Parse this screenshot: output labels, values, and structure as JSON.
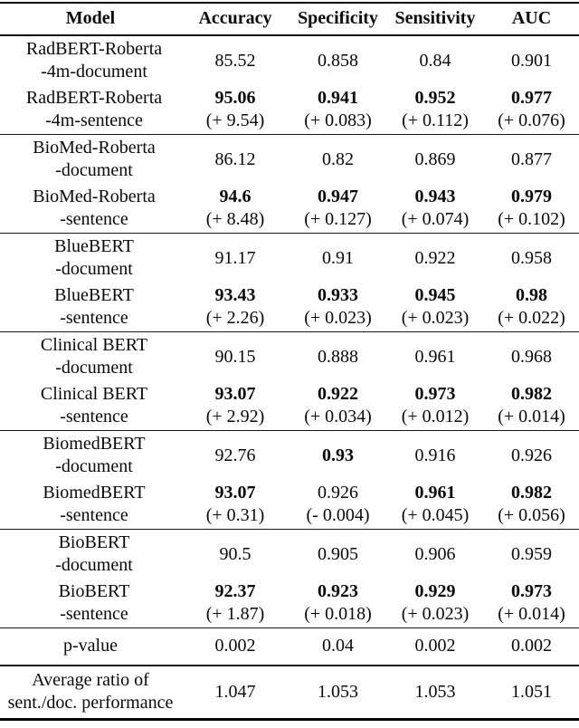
{
  "table": {
    "header": {
      "model": "Model",
      "accuracy": "Accuracy",
      "specificity": "Specificity",
      "sensitivity": "Sensitivity",
      "auc": "AUC"
    },
    "groups": [
      {
        "doc": {
          "name1": "RadBERT-Roberta",
          "name2": "-4m-document",
          "vals": [
            {
              "v": "85.52",
              "b": false
            },
            {
              "v": "0.858",
              "b": false
            },
            {
              "v": "0.84",
              "b": false
            },
            {
              "v": "0.901",
              "b": false
            }
          ]
        },
        "sent": {
          "name1": "RadBERT-Roberta",
          "name2": "-4m-sentence",
          "vals": [
            {
              "v": "95.06",
              "b": true,
              "d": "(+ 9.54)"
            },
            {
              "v": "0.941",
              "b": true,
              "d": "(+ 0.083)"
            },
            {
              "v": "0.952",
              "b": true,
              "d": "(+ 0.112)"
            },
            {
              "v": "0.977",
              "b": true,
              "d": "(+ 0.076)"
            }
          ]
        }
      },
      {
        "doc": {
          "name1": "BioMed-Roberta",
          "name2": "-document",
          "vals": [
            {
              "v": "86.12",
              "b": false
            },
            {
              "v": "0.82",
              "b": false
            },
            {
              "v": "0.869",
              "b": false
            },
            {
              "v": "0.877",
              "b": false
            }
          ]
        },
        "sent": {
          "name1": "BioMed-Roberta",
          "name2": "-sentence",
          "vals": [
            {
              "v": "94.6",
              "b": true,
              "d": "(+ 8.48)"
            },
            {
              "v": "0.947",
              "b": true,
              "d": "(+ 0.127)"
            },
            {
              "v": "0.943",
              "b": true,
              "d": "(+ 0.074)"
            },
            {
              "v": "0.979",
              "b": true,
              "d": "(+ 0.102)"
            }
          ]
        }
      },
      {
        "doc": {
          "name1": "BlueBERT",
          "name2": "-document",
          "vals": [
            {
              "v": "91.17",
              "b": false
            },
            {
              "v": "0.91",
              "b": false
            },
            {
              "v": "0.922",
              "b": false
            },
            {
              "v": "0.958",
              "b": false
            }
          ]
        },
        "sent": {
          "name1": "BlueBERT",
          "name2": "-sentence",
          "vals": [
            {
              "v": "93.43",
              "b": true,
              "d": "(+ 2.26)"
            },
            {
              "v": "0.933",
              "b": true,
              "d": "(+ 0.023)"
            },
            {
              "v": "0.945",
              "b": true,
              "d": "(+ 0.023)"
            },
            {
              "v": "0.98",
              "b": true,
              "d": "(+ 0.022)"
            }
          ]
        }
      },
      {
        "doc": {
          "name1": "Clinical BERT",
          "name2": "-document",
          "vals": [
            {
              "v": "90.15",
              "b": false
            },
            {
              "v": "0.888",
              "b": false
            },
            {
              "v": "0.961",
              "b": false
            },
            {
              "v": "0.968",
              "b": false
            }
          ]
        },
        "sent": {
          "name1": "Clinical BERT",
          "name2": "-sentence",
          "vals": [
            {
              "v": "93.07",
              "b": true,
              "d": "(+ 2.92)"
            },
            {
              "v": "0.922",
              "b": true,
              "d": "(+ 0.034)"
            },
            {
              "v": "0.973",
              "b": true,
              "d": "(+ 0.012)"
            },
            {
              "v": "0.982",
              "b": true,
              "d": "(+ 0.014)"
            }
          ]
        }
      },
      {
        "doc": {
          "name1": "BiomedBERT",
          "name2": "-document",
          "vals": [
            {
              "v": "92.76",
              "b": false
            },
            {
              "v": "0.93",
              "b": true
            },
            {
              "v": "0.916",
              "b": false
            },
            {
              "v": "0.926",
              "b": false
            }
          ]
        },
        "sent": {
          "name1": "BiomedBERT",
          "name2": "-sentence",
          "vals": [
            {
              "v": "93.07",
              "b": true,
              "d": "(+ 0.31)"
            },
            {
              "v": "0.926",
              "b": false,
              "d": "(- 0.004)"
            },
            {
              "v": "0.961",
              "b": true,
              "d": "(+ 0.045)"
            },
            {
              "v": "0.982",
              "b": true,
              "d": "(+ 0.056)"
            }
          ]
        }
      },
      {
        "doc": {
          "name1": "BioBERT",
          "name2": "-document",
          "vals": [
            {
              "v": "90.5",
              "b": false
            },
            {
              "v": "0.905",
              "b": false
            },
            {
              "v": "0.906",
              "b": false
            },
            {
              "v": "0.959",
              "b": false
            }
          ]
        },
        "sent": {
          "name1": "BioBERT",
          "name2": "-sentence",
          "vals": [
            {
              "v": "92.37",
              "b": true,
              "d": "(+ 1.87)"
            },
            {
              "v": "0.923",
              "b": true,
              "d": "(+ 0.018)"
            },
            {
              "v": "0.929",
              "b": true,
              "d": "(+ 0.023)"
            },
            {
              "v": "0.973",
              "b": true,
              "d": "(+ 0.014)"
            }
          ]
        }
      }
    ],
    "pvalue": {
      "label": "p-value",
      "vals": [
        "0.002",
        "0.04",
        "0.002",
        "0.002"
      ]
    },
    "ratio": {
      "label1": "Average ratio of",
      "label2": "sent./doc. performance",
      "vals": [
        "1.047",
        "1.053",
        "1.053",
        "1.051"
      ]
    }
  }
}
